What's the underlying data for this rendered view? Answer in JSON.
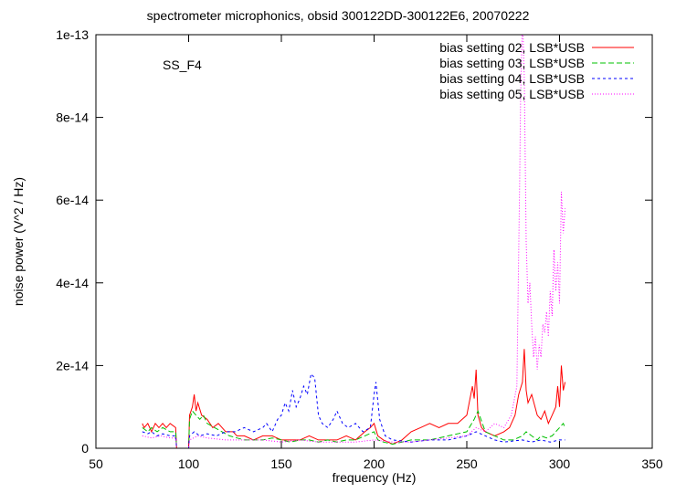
{
  "chart_data": {
    "type": "line",
    "title": "spectrometer microphonics, obsid 300122DD-300122E6, 20070222",
    "xlabel": "frequency (Hz)",
    "ylabel": "noise power (V^2 / Hz)",
    "xlim": [
      50,
      350
    ],
    "ylim": [
      0,
      1e-13
    ],
    "x_ticks": [
      50,
      100,
      150,
      200,
      250,
      300,
      350
    ],
    "x_tick_labels": [
      "50",
      "100",
      "150",
      "200",
      "250",
      "300",
      "350"
    ],
    "y_ticks": [
      0,
      2e-14,
      4e-14,
      6e-14,
      8e-14,
      1e-13
    ],
    "y_tick_labels": [
      "0",
      "2e-14",
      "4e-14",
      "6e-14",
      "8e-14",
      "1e-13"
    ],
    "grid": false,
    "legend_position": "top-right",
    "annotation": "SS_F4",
    "series": [
      {
        "name": "bias setting 02, LSB*USB",
        "color": "#ff0000",
        "dash": "solid",
        "x": [
          75,
          76,
          78,
          80,
          82,
          84,
          86,
          88,
          90,
          93,
          93.5,
          100,
          100.5,
          102,
          103,
          104,
          105,
          107,
          110,
          113,
          116,
          120,
          124,
          126,
          130,
          135,
          140,
          145,
          150,
          155,
          160,
          165,
          170,
          175,
          180,
          185,
          190,
          195,
          198,
          200,
          202,
          205,
          210,
          215,
          220,
          225,
          230,
          235,
          240,
          245,
          250,
          253,
          254,
          255,
          256,
          258,
          260,
          265,
          270,
          273,
          276,
          278,
          280,
          281,
          282,
          283,
          285,
          288,
          290,
          292,
          294,
          296,
          298,
          299,
          300,
          301,
          302,
          303
        ],
        "values": [
          6e-15,
          5e-15,
          6e-15,
          4e-15,
          6e-15,
          5e-15,
          6e-15,
          5e-15,
          6e-15,
          5e-15,
          0,
          0,
          8e-15,
          1e-14,
          1.3e-14,
          9e-15,
          1.1e-14,
          8e-15,
          7e-15,
          5e-15,
          6e-15,
          4e-15,
          4e-15,
          3e-15,
          3e-15,
          2e-15,
          3e-15,
          3e-15,
          2e-15,
          2e-15,
          2e-15,
          3e-15,
          2e-15,
          2e-15,
          2e-15,
          3e-15,
          2e-15,
          4e-15,
          5e-15,
          6e-15,
          3e-15,
          2e-15,
          1e-15,
          2e-15,
          4e-15,
          5e-15,
          6e-15,
          5e-15,
          6e-15,
          6e-15,
          8e-15,
          1.5e-14,
          1.2e-14,
          1.9e-14,
          8e-15,
          5e-15,
          4e-15,
          3e-15,
          4e-15,
          5e-15,
          8e-15,
          1.3e-14,
          1.6e-14,
          2.4e-14,
          1.4e-14,
          1.1e-14,
          1.3e-14,
          8e-15,
          7e-15,
          9e-15,
          6e-15,
          8e-15,
          1e-14,
          1.5e-14,
          1e-14,
          2e-14,
          1.4e-14,
          1.6e-14
        ]
      },
      {
        "name": "bias setting 03, LSB*USB",
        "color": "#00c000",
        "dash": "6,3",
        "x": [
          75,
          78,
          80,
          83,
          86,
          90,
          93,
          93.5,
          100,
          100.5,
          102,
          104,
          106,
          108,
          110,
          114,
          118,
          122,
          126,
          130,
          135,
          140,
          145,
          150,
          155,
          160,
          165,
          170,
          175,
          180,
          185,
          190,
          195,
          200,
          202,
          205,
          210,
          220,
          230,
          240,
          250,
          254,
          256,
          260,
          265,
          270,
          275,
          280,
          282,
          285,
          288,
          290,
          293,
          296,
          298,
          300,
          302,
          303
        ],
        "values": [
          5e-15,
          4e-15,
          5e-15,
          4e-15,
          5e-15,
          4e-15,
          4e-15,
          0,
          0,
          7e-15,
          9e-15,
          8e-15,
          7e-15,
          8e-15,
          6e-15,
          5e-15,
          4e-15,
          3e-15,
          2.5e-15,
          2e-15,
          2e-15,
          2e-15,
          2.5e-15,
          2e-15,
          1.5e-15,
          2e-15,
          2e-15,
          1.5e-15,
          2e-15,
          1.5e-15,
          2e-15,
          2e-15,
          3e-15,
          4e-15,
          2e-15,
          1.5e-15,
          1e-15,
          2e-15,
          2e-15,
          3e-15,
          4e-15,
          7e-15,
          9e-15,
          4e-15,
          3e-15,
          2e-15,
          2e-15,
          3e-15,
          4e-15,
          3e-15,
          2e-15,
          3e-15,
          2.5e-15,
          3e-15,
          4e-15,
          5e-15,
          6e-15,
          5e-15
        ]
      },
      {
        "name": "bias setting 04, LSB*USB",
        "color": "#0000ff",
        "dash": "3,3",
        "x": [
          75,
          78,
          80,
          83,
          86,
          90,
          93,
          93.5,
          100,
          100.5,
          103,
          106,
          110,
          115,
          120,
          125,
          130,
          135,
          140,
          142,
          145,
          148,
          150,
          152,
          154,
          156,
          158,
          160,
          162,
          164,
          166,
          168,
          170,
          172,
          175,
          178,
          180,
          183,
          186,
          190,
          194,
          198,
          200,
          201,
          203,
          206,
          210,
          220,
          230,
          240,
          250,
          255,
          260,
          265,
          270,
          280,
          285,
          290,
          295,
          300,
          303
        ],
        "values": [
          4e-15,
          3.5e-15,
          4e-15,
          3e-15,
          3.5e-15,
          3e-15,
          3e-15,
          0,
          0,
          3e-15,
          4e-15,
          3e-15,
          3.5e-15,
          3e-15,
          4e-15,
          4e-15,
          5e-15,
          4e-15,
          5e-15,
          6e-15,
          4e-15,
          7e-15,
          8e-15,
          1.1e-14,
          9e-15,
          1.4e-14,
          1e-14,
          1.2e-14,
          1.5e-14,
          1.3e-14,
          1.8e-14,
          1.7e-14,
          8e-15,
          6e-15,
          5e-15,
          7e-15,
          9e-15,
          6e-15,
          5e-15,
          6e-15,
          4e-15,
          5e-15,
          1.3e-14,
          1.6e-14,
          7e-15,
          3e-15,
          2e-15,
          1.5e-15,
          2e-15,
          2e-15,
          3e-15,
          4e-15,
          3e-15,
          2e-15,
          1.5e-15,
          2e-15,
          1.5e-15,
          2e-15,
          1.5e-15,
          2e-15,
          2e-15
        ]
      },
      {
        "name": "bias setting 05, LSB*USB",
        "color": "#ff00ff",
        "dash": "1,2",
        "x": [
          75,
          80,
          85,
          90,
          93,
          93.5,
          100,
          100.5,
          105,
          110,
          120,
          130,
          140,
          150,
          160,
          170,
          180,
          190,
          200,
          210,
          220,
          230,
          240,
          250,
          255,
          260,
          265,
          270,
          274,
          277,
          278.5,
          279,
          280,
          281,
          282,
          283,
          284,
          285,
          286,
          287,
          288,
          289,
          290,
          291,
          292,
          293,
          294,
          295,
          296,
          297,
          298,
          299,
          300,
          301,
          302,
          303
        ],
        "values": [
          3e-15,
          2.5e-15,
          3e-15,
          2.5e-15,
          2.5e-15,
          0,
          0,
          2e-15,
          3e-15,
          2.5e-15,
          2e-15,
          2e-15,
          2e-15,
          1.5e-15,
          2e-15,
          1.5e-15,
          1.5e-15,
          1.5e-15,
          2e-15,
          1.5e-15,
          1.5e-15,
          2e-15,
          2.5e-15,
          3e-15,
          5e-15,
          4e-15,
          6e-15,
          5e-15,
          8e-15,
          1.5e-14,
          6.5e-14,
          8.5e-14,
          1.05e-13,
          9e-14,
          5e-14,
          3.5e-14,
          4e-14,
          3e-14,
          2.2e-14,
          2.7e-14,
          1.9e-14,
          2.5e-14,
          2.2e-14,
          3e-14,
          2.8e-14,
          3.3e-14,
          2.7e-14,
          3.8e-14,
          3.2e-14,
          4.8e-14,
          3.8e-14,
          4.5e-14,
          3.5e-14,
          6.2e-14,
          5.2e-14,
          5.8e-14
        ]
      }
    ]
  }
}
